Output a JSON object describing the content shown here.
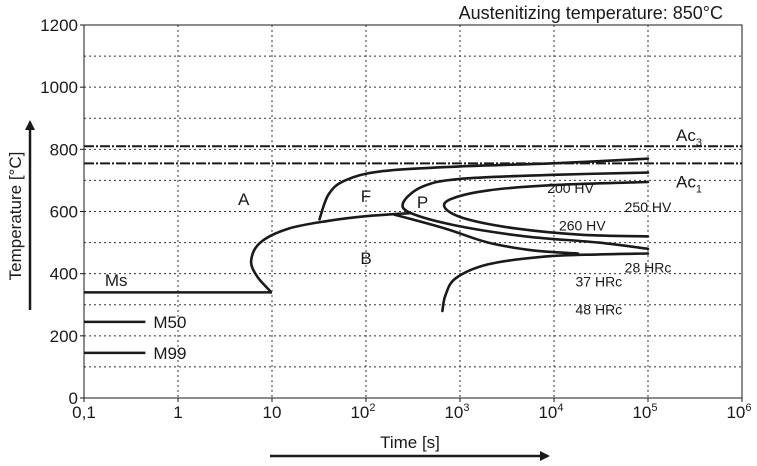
{
  "chart_data": {
    "type": "line",
    "title": "Austenitizing temperature: 850°C",
    "xlabel": "Time [s]",
    "ylabel": "Temperature [°C]",
    "xscale": "log",
    "xlim": [
      0.1,
      1000000
    ],
    "ylim": [
      0,
      1200
    ],
    "grid": "dotted",
    "x_ticks": [
      {
        "value": 0.1,
        "label": "0,1"
      },
      {
        "value": 1,
        "label": "1"
      },
      {
        "value": 10,
        "label": "10"
      },
      {
        "value": 100,
        "label": "10",
        "exp": "2"
      },
      {
        "value": 1000,
        "label": "10",
        "exp": "3"
      },
      {
        "value": 10000,
        "label": "10",
        "exp": "4"
      },
      {
        "value": 100000,
        "label": "10",
        "exp": "5"
      },
      {
        "value": 1000000,
        "label": "10",
        "exp": "6"
      }
    ],
    "y_ticks": [
      0,
      200,
      400,
      600,
      800,
      1000,
      1200
    ],
    "reference_lines": [
      {
        "name": "Ac",
        "sub": "3",
        "y": 810,
        "style": "dash-dot"
      },
      {
        "name": "Ac",
        "sub": "1",
        "y": 755,
        "style": "dash-dot"
      },
      {
        "name": "Ms",
        "y": 340,
        "x_end": 10,
        "style": "solid"
      },
      {
        "name": "M50",
        "y": 245,
        "x_end": 0.45,
        "style": "solid"
      },
      {
        "name": "M99",
        "y": 145,
        "x_end": 0.45,
        "style": "solid"
      }
    ],
    "curves": [
      {
        "id": "ferrite-start",
        "points": [
          [
            32,
            575
          ],
          [
            40,
            655
          ],
          [
            60,
            700
          ],
          [
            150,
            730
          ],
          [
            1000,
            745
          ],
          [
            10000,
            755
          ],
          [
            100000,
            770
          ]
        ]
      },
      {
        "id": "pearlite-start",
        "points": [
          [
            100000,
            725
          ],
          [
            10000,
            718
          ],
          [
            1000,
            705
          ],
          [
            400,
            680
          ],
          [
            250,
            630
          ],
          [
            300,
            595
          ],
          [
            900,
            555
          ],
          [
            5000,
            520
          ],
          [
            30000,
            500
          ],
          [
            100000,
            480
          ]
        ]
      },
      {
        "id": "pearlite-finish",
        "points": [
          [
            100000,
            695
          ],
          [
            10000,
            685
          ],
          [
            2000,
            668
          ],
          [
            800,
            640
          ],
          [
            700,
            610
          ],
          [
            1200,
            575
          ],
          [
            4000,
            545
          ],
          [
            20000,
            525
          ],
          [
            100000,
            520
          ]
        ]
      },
      {
        "id": "bainite-start",
        "points": [
          [
            9.5,
            345
          ],
          [
            7,
            390
          ],
          [
            6,
            440
          ],
          [
            7.5,
            500
          ],
          [
            15,
            545
          ],
          [
            40,
            570
          ],
          [
            100,
            585
          ],
          [
            300,
            595
          ]
        ]
      },
      {
        "id": "bainite-finish",
        "points": [
          [
            200,
            590
          ],
          [
            700,
            545
          ],
          [
            2000,
            500
          ],
          [
            6000,
            475
          ],
          [
            18000,
            465
          ]
        ]
      },
      {
        "id": "bainite-lower",
        "points": [
          [
            650,
            280
          ],
          [
            700,
            330
          ],
          [
            900,
            385
          ],
          [
            2000,
            430
          ],
          [
            8000,
            455
          ],
          [
            30000,
            462
          ],
          [
            100000,
            465
          ]
        ]
      }
    ],
    "region_labels": [
      {
        "text": "A",
        "x": 5,
        "y": 640
      },
      {
        "text": "F",
        "x": 100,
        "y": 650
      },
      {
        "text": "P",
        "x": 400,
        "y": 630
      },
      {
        "text": "B",
        "x": 100,
        "y": 450
      },
      {
        "text": "Ms",
        "x": 0.22,
        "y": 380
      }
    ],
    "hardness_labels": [
      {
        "text": "200 HV",
        "x": 15000,
        "y": 675
      },
      {
        "text": "250 HV",
        "x": 100000,
        "y": 615
      },
      {
        "text": "260 HV",
        "x": 20000,
        "y": 555
      },
      {
        "text": "28 HRc",
        "x": 100000,
        "y": 420
      },
      {
        "text": "37 HRc",
        "x": 30000,
        "y": 375
      },
      {
        "text": "48 HRc",
        "x": 30000,
        "y": 285
      }
    ]
  }
}
